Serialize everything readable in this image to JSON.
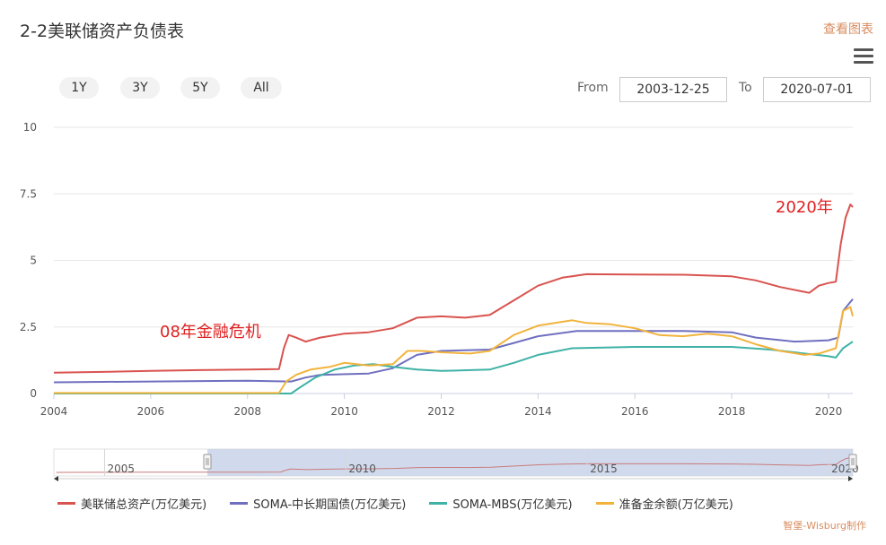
{
  "header": {
    "title": "2-2美联储资产负债表",
    "view_link": "查看图表"
  },
  "range_selector": {
    "buttons": [
      "1Y",
      "3Y",
      "5Y",
      "All"
    ],
    "from_label": "From",
    "from_value": "2003-12-25",
    "to_label": "To",
    "to_value": "2020-07-01"
  },
  "annotations": [
    {
      "text": "08年金融危机",
      "color": "#e02020"
    },
    {
      "text": "2020年",
      "color": "#e02020"
    }
  ],
  "navigator": {
    "tick_labels": [
      "2005",
      "2010",
      "2015",
      "2020"
    ],
    "selected_range": [
      "2003-12-25",
      "2020-07-01"
    ]
  },
  "credit": "智堡-Wisburg制作",
  "chart_data": {
    "type": "line",
    "title": "2-2美联储资产负债表",
    "xlabel": "",
    "ylabel": "",
    "xlim": [
      2004,
      2020.5
    ],
    "ylim": [
      0,
      10
    ],
    "x_ticks": [
      "2004",
      "2006",
      "2008",
      "2010",
      "2012",
      "2014",
      "2016",
      "2018",
      "2020"
    ],
    "y_ticks": [
      "0",
      "2.5",
      "5",
      "7.5",
      "10"
    ],
    "grid": "horizontal",
    "legend_position": "bottom",
    "series": [
      {
        "name": "美联储总资产(万亿美元)",
        "color": "#d9534f",
        "points": [
          [
            2004,
            0.78
          ],
          [
            2005,
            0.81
          ],
          [
            2006,
            0.85
          ],
          [
            2007,
            0.88
          ],
          [
            2008,
            0.9
          ],
          [
            2008.65,
            0.92
          ],
          [
            2008.75,
            1.7
          ],
          [
            2008.85,
            2.2
          ],
          [
            2009,
            2.1
          ],
          [
            2009.2,
            1.95
          ],
          [
            2009.5,
            2.1
          ],
          [
            2010,
            2.25
          ],
          [
            2010.5,
            2.3
          ],
          [
            2011,
            2.45
          ],
          [
            2011.5,
            2.85
          ],
          [
            2012,
            2.9
          ],
          [
            2012.5,
            2.85
          ],
          [
            2013,
            2.95
          ],
          [
            2013.5,
            3.5
          ],
          [
            2014,
            4.05
          ],
          [
            2014.5,
            4.35
          ],
          [
            2015,
            4.48
          ],
          [
            2016,
            4.47
          ],
          [
            2017,
            4.46
          ],
          [
            2018,
            4.4
          ],
          [
            2018.5,
            4.25
          ],
          [
            2019,
            4.0
          ],
          [
            2019.6,
            3.78
          ],
          [
            2019.8,
            4.05
          ],
          [
            2020,
            4.15
          ],
          [
            2020.15,
            4.2
          ],
          [
            2020.25,
            5.6
          ],
          [
            2020.35,
            6.6
          ],
          [
            2020.45,
            7.1
          ],
          [
            2020.5,
            7.0
          ]
        ]
      },
      {
        "name": "SOMA-中长期国债(万亿美元)",
        "color": "#6f6fc0",
        "points": [
          [
            2004,
            0.42
          ],
          [
            2006,
            0.45
          ],
          [
            2008,
            0.48
          ],
          [
            2008.9,
            0.45
          ],
          [
            2009.2,
            0.6
          ],
          [
            2009.5,
            0.7
          ],
          [
            2010.5,
            0.75
          ],
          [
            2011,
            0.95
          ],
          [
            2011.5,
            1.45
          ],
          [
            2012,
            1.6
          ],
          [
            2013,
            1.65
          ],
          [
            2013.5,
            1.9
          ],
          [
            2014,
            2.15
          ],
          [
            2014.8,
            2.35
          ],
          [
            2016,
            2.35
          ],
          [
            2017,
            2.35
          ],
          [
            2018,
            2.3
          ],
          [
            2018.5,
            2.1
          ],
          [
            2019.3,
            1.95
          ],
          [
            2020,
            2.0
          ],
          [
            2020.2,
            2.1
          ],
          [
            2020.3,
            3.1
          ],
          [
            2020.5,
            3.55
          ]
        ]
      },
      {
        "name": "SOMA-MBS(万亿美元)",
        "color": "#3fb2a6",
        "points": [
          [
            2004,
            0.0
          ],
          [
            2008.9,
            0.0
          ],
          [
            2009.1,
            0.25
          ],
          [
            2009.4,
            0.6
          ],
          [
            2009.8,
            0.9
          ],
          [
            2010.2,
            1.05
          ],
          [
            2010.6,
            1.1
          ],
          [
            2011,
            1.0
          ],
          [
            2011.5,
            0.9
          ],
          [
            2012,
            0.85
          ],
          [
            2013,
            0.9
          ],
          [
            2013.5,
            1.15
          ],
          [
            2014,
            1.45
          ],
          [
            2014.7,
            1.7
          ],
          [
            2016,
            1.75
          ],
          [
            2017,
            1.75
          ],
          [
            2018,
            1.75
          ],
          [
            2018.8,
            1.65
          ],
          [
            2019.5,
            1.5
          ],
          [
            2020,
            1.4
          ],
          [
            2020.15,
            1.35
          ],
          [
            2020.3,
            1.7
          ],
          [
            2020.5,
            1.95
          ]
        ]
      },
      {
        "name": "准备金余额(万亿美元)",
        "color": "#f2b33d",
        "points": [
          [
            2004,
            0.02
          ],
          [
            2008.65,
            0.02
          ],
          [
            2008.8,
            0.45
          ],
          [
            2009,
            0.7
          ],
          [
            2009.3,
            0.9
          ],
          [
            2009.7,
            1.0
          ],
          [
            2010,
            1.15
          ],
          [
            2010.5,
            1.05
          ],
          [
            2011,
            1.1
          ],
          [
            2011.3,
            1.6
          ],
          [
            2011.6,
            1.6
          ],
          [
            2012,
            1.55
          ],
          [
            2012.6,
            1.5
          ],
          [
            2013,
            1.6
          ],
          [
            2013.5,
            2.2
          ],
          [
            2014,
            2.55
          ],
          [
            2014.7,
            2.75
          ],
          [
            2015,
            2.65
          ],
          [
            2015.5,
            2.6
          ],
          [
            2016,
            2.45
          ],
          [
            2016.5,
            2.2
          ],
          [
            2017,
            2.15
          ],
          [
            2017.5,
            2.25
          ],
          [
            2018,
            2.15
          ],
          [
            2018.5,
            1.85
          ],
          [
            2019,
            1.6
          ],
          [
            2019.5,
            1.45
          ],
          [
            2019.8,
            1.5
          ],
          [
            2020.15,
            1.7
          ],
          [
            2020.3,
            3.1
          ],
          [
            2020.45,
            3.25
          ],
          [
            2020.5,
            2.9
          ]
        ]
      }
    ]
  }
}
